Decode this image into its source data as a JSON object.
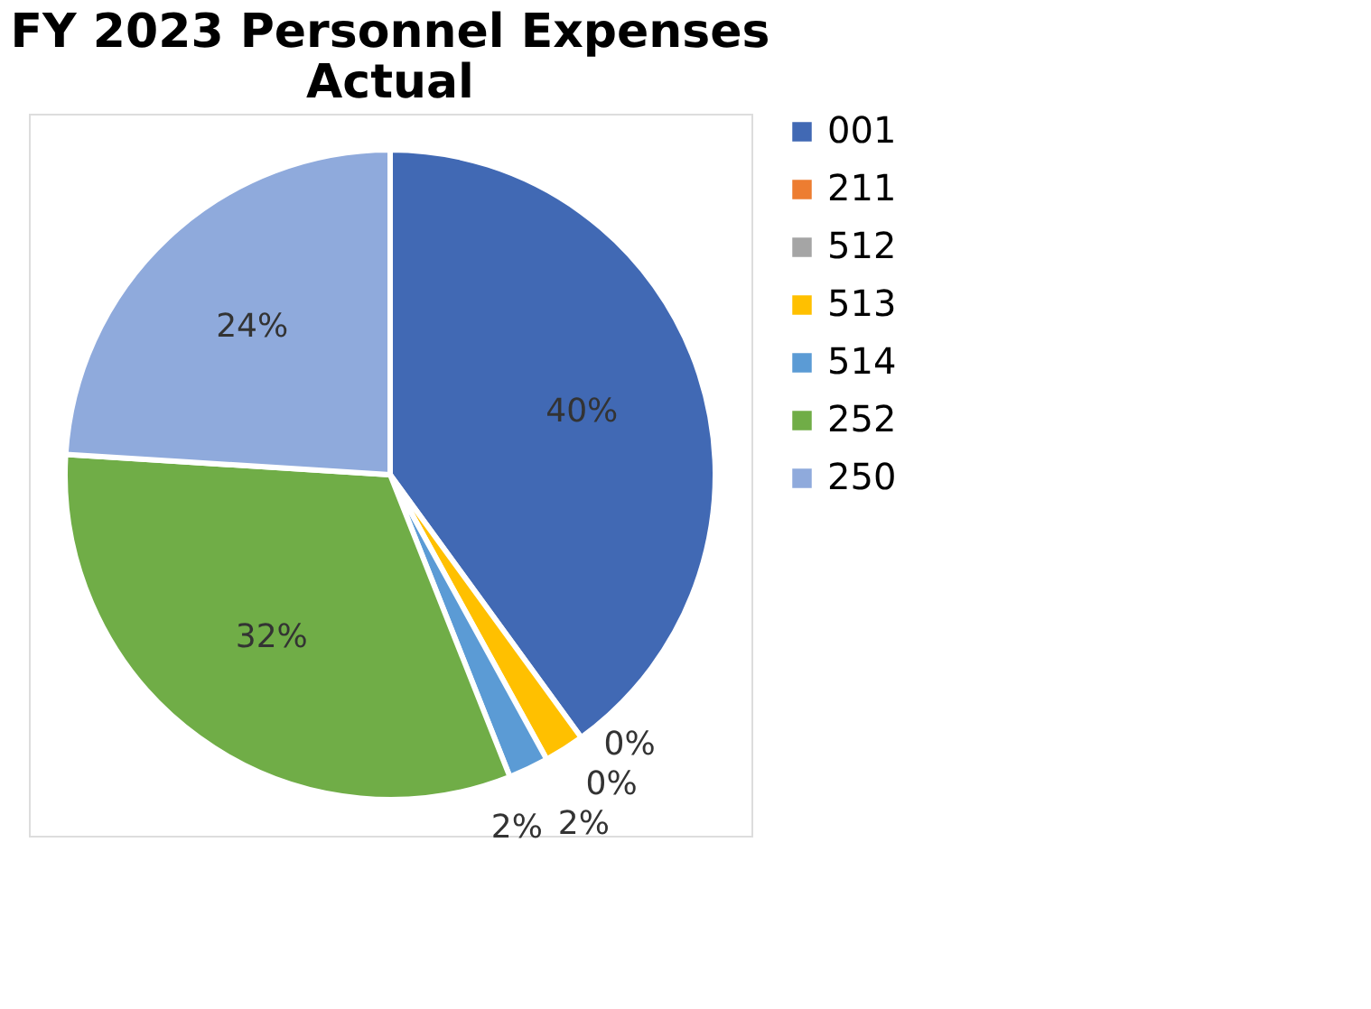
{
  "chart_data": {
    "type": "pie",
    "title": "FY 2023 Personnel Expenses Actual",
    "categories": [
      "001",
      "211",
      "512",
      "513",
      "514",
      "252",
      "250"
    ],
    "values": [
      40,
      0,
      0,
      2,
      2,
      32,
      24
    ],
    "colors": [
      "#4169b4",
      "#ed7d31",
      "#a5a5a5",
      "#ffc000",
      "#5b9bd5",
      "#70ad47",
      "#8faadc"
    ],
    "value_labels": [
      "40%",
      "0%",
      "0%",
      "2%",
      "2%",
      "32%",
      "24%"
    ],
    "legend": "right"
  }
}
